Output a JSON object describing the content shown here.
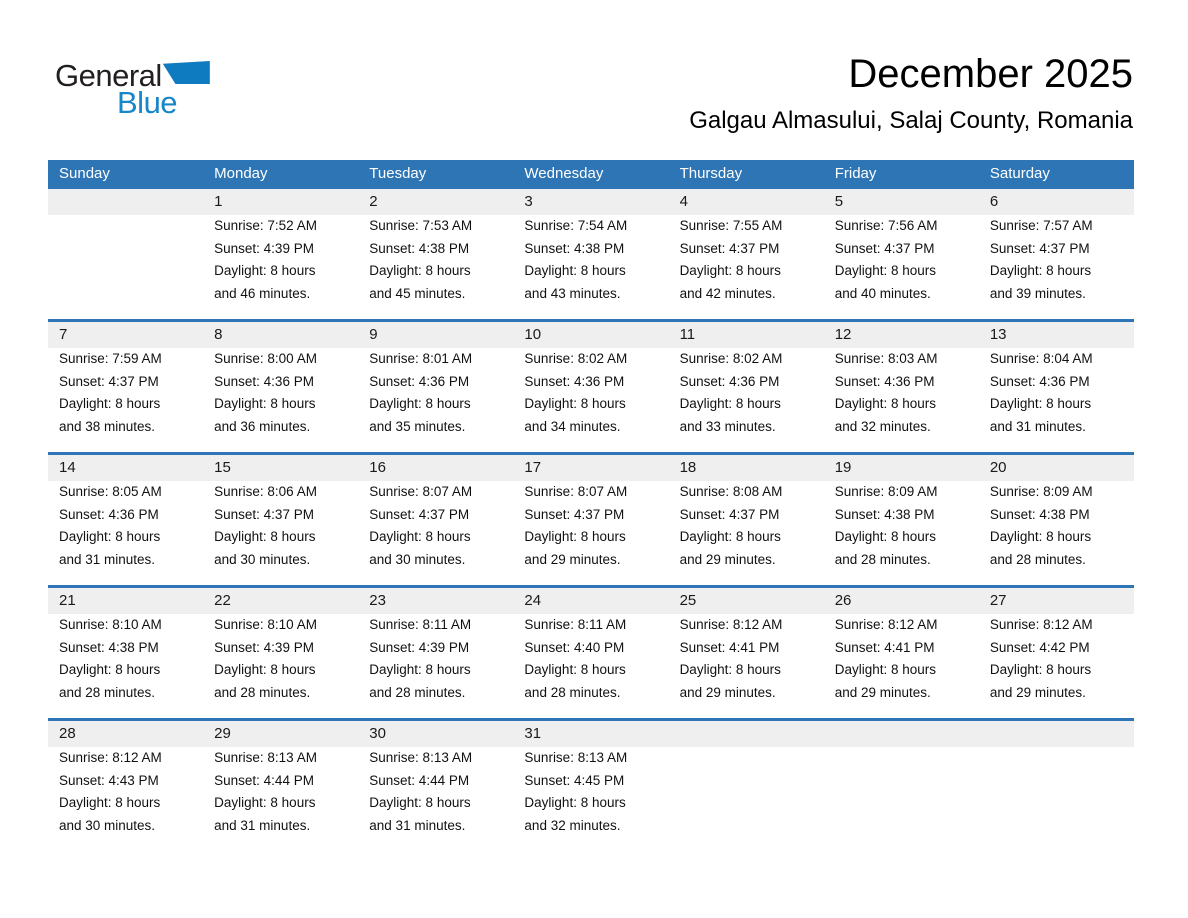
{
  "logo": {
    "line1": "General",
    "line2": "Blue"
  },
  "header": {
    "title": "December 2025",
    "location": "Galgau Almasului, Salaj County, Romania"
  },
  "colors": {
    "header_blue": "#2e75b5",
    "row_stripe_gray": "#efefef",
    "logo_text_blue": "#1787c8",
    "logo_triangle_blue": "#0e7abf"
  },
  "calendar": {
    "weekday_headers": [
      "Sunday",
      "Monday",
      "Tuesday",
      "Wednesday",
      "Thursday",
      "Friday",
      "Saturday"
    ],
    "weeks": [
      {
        "cells": [
          {
            "day": "",
            "lines": []
          },
          {
            "day": "1",
            "lines": [
              "Sunrise: 7:52 AM",
              "Sunset: 4:39 PM",
              "Daylight: 8 hours",
              "and 46 minutes."
            ]
          },
          {
            "day": "2",
            "lines": [
              "Sunrise: 7:53 AM",
              "Sunset: 4:38 PM",
              "Daylight: 8 hours",
              "and 45 minutes."
            ]
          },
          {
            "day": "3",
            "lines": [
              "Sunrise: 7:54 AM",
              "Sunset: 4:38 PM",
              "Daylight: 8 hours",
              "and 43 minutes."
            ]
          },
          {
            "day": "4",
            "lines": [
              "Sunrise: 7:55 AM",
              "Sunset: 4:37 PM",
              "Daylight: 8 hours",
              "and 42 minutes."
            ]
          },
          {
            "day": "5",
            "lines": [
              "Sunrise: 7:56 AM",
              "Sunset: 4:37 PM",
              "Daylight: 8 hours",
              "and 40 minutes."
            ]
          },
          {
            "day": "6",
            "lines": [
              "Sunrise: 7:57 AM",
              "Sunset: 4:37 PM",
              "Daylight: 8 hours",
              "and 39 minutes."
            ]
          }
        ]
      },
      {
        "cells": [
          {
            "day": "7",
            "lines": [
              "Sunrise: 7:59 AM",
              "Sunset: 4:37 PM",
              "Daylight: 8 hours",
              "and 38 minutes."
            ]
          },
          {
            "day": "8",
            "lines": [
              "Sunrise: 8:00 AM",
              "Sunset: 4:36 PM",
              "Daylight: 8 hours",
              "and 36 minutes."
            ]
          },
          {
            "day": "9",
            "lines": [
              "Sunrise: 8:01 AM",
              "Sunset: 4:36 PM",
              "Daylight: 8 hours",
              "and 35 minutes."
            ]
          },
          {
            "day": "10",
            "lines": [
              "Sunrise: 8:02 AM",
              "Sunset: 4:36 PM",
              "Daylight: 8 hours",
              "and 34 minutes."
            ]
          },
          {
            "day": "11",
            "lines": [
              "Sunrise: 8:02 AM",
              "Sunset: 4:36 PM",
              "Daylight: 8 hours",
              "and 33 minutes."
            ]
          },
          {
            "day": "12",
            "lines": [
              "Sunrise: 8:03 AM",
              "Sunset: 4:36 PM",
              "Daylight: 8 hours",
              "and 32 minutes."
            ]
          },
          {
            "day": "13",
            "lines": [
              "Sunrise: 8:04 AM",
              "Sunset: 4:36 PM",
              "Daylight: 8 hours",
              "and 31 minutes."
            ]
          }
        ]
      },
      {
        "cells": [
          {
            "day": "14",
            "lines": [
              "Sunrise: 8:05 AM",
              "Sunset: 4:36 PM",
              "Daylight: 8 hours",
              "and 31 minutes."
            ]
          },
          {
            "day": "15",
            "lines": [
              "Sunrise: 8:06 AM",
              "Sunset: 4:37 PM",
              "Daylight: 8 hours",
              "and 30 minutes."
            ]
          },
          {
            "day": "16",
            "lines": [
              "Sunrise: 8:07 AM",
              "Sunset: 4:37 PM",
              "Daylight: 8 hours",
              "and 30 minutes."
            ]
          },
          {
            "day": "17",
            "lines": [
              "Sunrise: 8:07 AM",
              "Sunset: 4:37 PM",
              "Daylight: 8 hours",
              "and 29 minutes."
            ]
          },
          {
            "day": "18",
            "lines": [
              "Sunrise: 8:08 AM",
              "Sunset: 4:37 PM",
              "Daylight: 8 hours",
              "and 29 minutes."
            ]
          },
          {
            "day": "19",
            "lines": [
              "Sunrise: 8:09 AM",
              "Sunset: 4:38 PM",
              "Daylight: 8 hours",
              "and 28 minutes."
            ]
          },
          {
            "day": "20",
            "lines": [
              "Sunrise: 8:09 AM",
              "Sunset: 4:38 PM",
              "Daylight: 8 hours",
              "and 28 minutes."
            ]
          }
        ]
      },
      {
        "cells": [
          {
            "day": "21",
            "lines": [
              "Sunrise: 8:10 AM",
              "Sunset: 4:38 PM",
              "Daylight: 8 hours",
              "and 28 minutes."
            ]
          },
          {
            "day": "22",
            "lines": [
              "Sunrise: 8:10 AM",
              "Sunset: 4:39 PM",
              "Daylight: 8 hours",
              "and 28 minutes."
            ]
          },
          {
            "day": "23",
            "lines": [
              "Sunrise: 8:11 AM",
              "Sunset: 4:39 PM",
              "Daylight: 8 hours",
              "and 28 minutes."
            ]
          },
          {
            "day": "24",
            "lines": [
              "Sunrise: 8:11 AM",
              "Sunset: 4:40 PM",
              "Daylight: 8 hours",
              "and 28 minutes."
            ]
          },
          {
            "day": "25",
            "lines": [
              "Sunrise: 8:12 AM",
              "Sunset: 4:41 PM",
              "Daylight: 8 hours",
              "and 29 minutes."
            ]
          },
          {
            "day": "26",
            "lines": [
              "Sunrise: 8:12 AM",
              "Sunset: 4:41 PM",
              "Daylight: 8 hours",
              "and 29 minutes."
            ]
          },
          {
            "day": "27",
            "lines": [
              "Sunrise: 8:12 AM",
              "Sunset: 4:42 PM",
              "Daylight: 8 hours",
              "and 29 minutes."
            ]
          }
        ]
      },
      {
        "cells": [
          {
            "day": "28",
            "lines": [
              "Sunrise: 8:12 AM",
              "Sunset: 4:43 PM",
              "Daylight: 8 hours",
              "and 30 minutes."
            ]
          },
          {
            "day": "29",
            "lines": [
              "Sunrise: 8:13 AM",
              "Sunset: 4:44 PM",
              "Daylight: 8 hours",
              "and 31 minutes."
            ]
          },
          {
            "day": "30",
            "lines": [
              "Sunrise: 8:13 AM",
              "Sunset: 4:44 PM",
              "Daylight: 8 hours",
              "and 31 minutes."
            ]
          },
          {
            "day": "31",
            "lines": [
              "Sunrise: 8:13 AM",
              "Sunset: 4:45 PM",
              "Daylight: 8 hours",
              "and 32 minutes."
            ]
          },
          {
            "day": "",
            "lines": []
          },
          {
            "day": "",
            "lines": []
          },
          {
            "day": "",
            "lines": []
          }
        ]
      }
    ]
  }
}
